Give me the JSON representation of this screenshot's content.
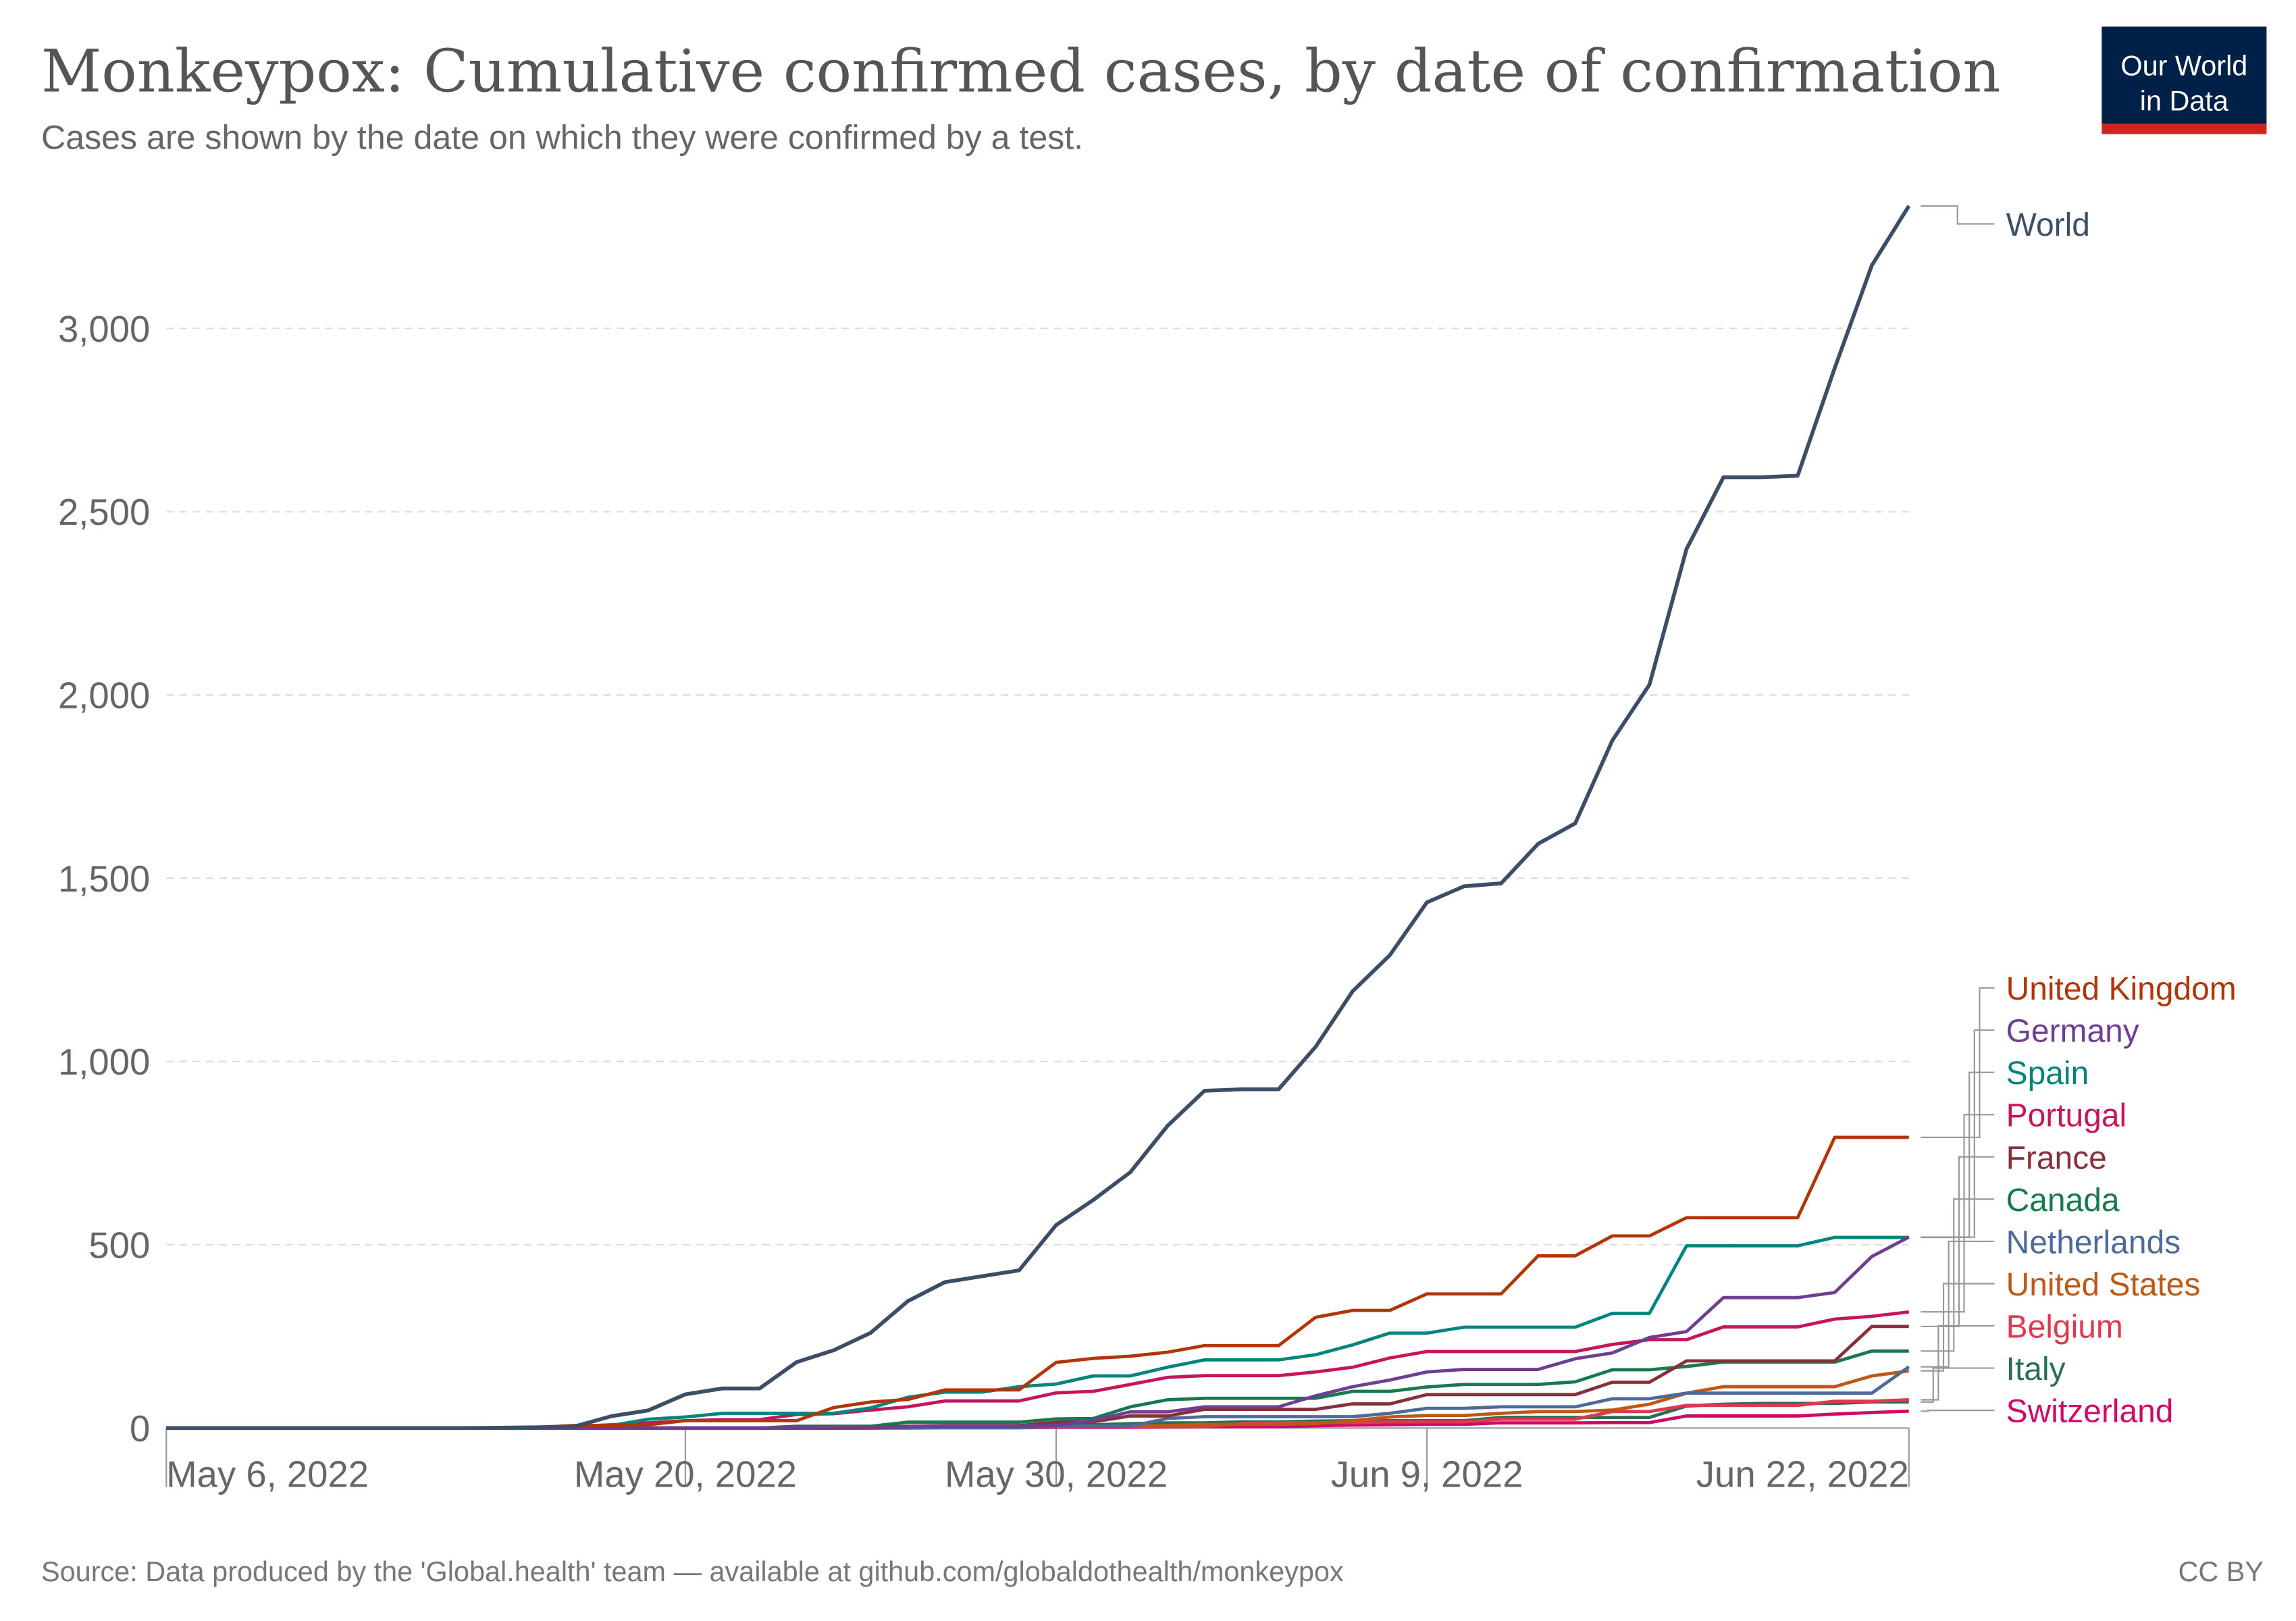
{
  "header": {
    "title": "Monkeypox: Cumulative confirmed cases, by date of confirmation",
    "subtitle": "Cases are shown by the date on which they were confirmed by a test.",
    "logo_line1": "Our World",
    "logo_line2": "in Data"
  },
  "footer": {
    "source": "Source: Data produced by the 'Global.health' team — available at github.com/globaldothealth/monkeypox",
    "license": "CC BY"
  },
  "chart_data": {
    "type": "line",
    "title": "Monkeypox: Cumulative confirmed cases, by date of confirmation",
    "x_start": "May 6, 2022",
    "x_end": "Jun 22, 2022",
    "x_unit": "day",
    "xlim_days": [
      0,
      47
    ],
    "ylim": [
      0,
      3340
    ],
    "grid": true,
    "y_ticks": [
      {
        "value": 0,
        "label": "0"
      },
      {
        "value": 500,
        "label": "500"
      },
      {
        "value": 1000,
        "label": "1,000"
      },
      {
        "value": 1500,
        "label": "1,500"
      },
      {
        "value": 2000,
        "label": "2,000"
      },
      {
        "value": 2500,
        "label": "2,500"
      },
      {
        "value": 3000,
        "label": "3,000"
      }
    ],
    "x_ticks": [
      {
        "day": 0,
        "label": "May 6, 2022"
      },
      {
        "day": 14,
        "label": "May 20, 2022"
      },
      {
        "day": 24,
        "label": "May 30, 2022"
      },
      {
        "day": 34,
        "label": "Jun 9, 2022"
      },
      {
        "day": 47,
        "label": "Jun 22, 2022"
      }
    ],
    "legend_placement": "right",
    "series": [
      {
        "name": "World",
        "color": "#3c4e66",
        "values": [
          0,
          0,
          0,
          0,
          0,
          0,
          0,
          0,
          0,
          1,
          2,
          4,
          32,
          48,
          92,
          108,
          108,
          180,
          212,
          260,
          346,
          398,
          414,
          430,
          554,
          622,
          698,
          824,
          920,
          924,
          924,
          1040,
          1192,
          1290,
          1434,
          1478,
          1486,
          1594,
          1650,
          1876,
          2028,
          2398,
          2594,
          2594,
          2598,
          2892,
          3172,
          3334
        ]
      },
      {
        "name": "United Kingdom",
        "color": "#b13507",
        "values": [
          0,
          0,
          0,
          0,
          0,
          0,
          0,
          0,
          0,
          1,
          2,
          7,
          7,
          9,
          20,
          20,
          20,
          20,
          56,
          71,
          78,
          104,
          104,
          104,
          179,
          190,
          196,
          207,
          225,
          225,
          225,
          302,
          321,
          321,
          366,
          366,
          366,
          470,
          470,
          524,
          524,
          574,
          574,
          574,
          574,
          793,
          793,
          793
        ]
      },
      {
        "name": "Germany",
        "color": "#6d3e91",
        "values": [
          0,
          0,
          0,
          0,
          0,
          0,
          0,
          0,
          0,
          0,
          0,
          0,
          0,
          0,
          0,
          0,
          0,
          1,
          3,
          3,
          5,
          5,
          5,
          5,
          7,
          21,
          44,
          44,
          58,
          58,
          58,
          88,
          113,
          131,
          153,
          160,
          160,
          160,
          189,
          205,
          247,
          263,
          356,
          356,
          356,
          370,
          468,
          521
        ]
      },
      {
        "name": "Spain",
        "color": "#00847e",
        "values": [
          0,
          0,
          0,
          0,
          0,
          0,
          0,
          0,
          0,
          0,
          1,
          7,
          7,
          24,
          30,
          40,
          40,
          40,
          40,
          55,
          84,
          98,
          98,
          113,
          120,
          142,
          142,
          166,
          186,
          186,
          186,
          200,
          227,
          259,
          259,
          275,
          275,
          275,
          275,
          313,
          313,
          497,
          497,
          497,
          497,
          520,
          520,
          520
        ]
      },
      {
        "name": "Portugal",
        "color": "#c5165c",
        "values": [
          0,
          0,
          0,
          0,
          0,
          0,
          0,
          0,
          0,
          0,
          0,
          5,
          9,
          14,
          20,
          23,
          23,
          37,
          39,
          49,
          58,
          74,
          74,
          74,
          96,
          100,
          119,
          138,
          143,
          143,
          143,
          153,
          166,
          191,
          209,
          209,
          209,
          209,
          209,
          228,
          241,
          241,
          276,
          276,
          276,
          297,
          305,
          317
        ]
      },
      {
        "name": "France",
        "color": "#883039",
        "values": [
          0,
          0,
          0,
          0,
          0,
          0,
          0,
          0,
          0,
          0,
          0,
          0,
          0,
          0,
          0,
          0,
          0,
          0,
          0,
          1,
          5,
          7,
          7,
          7,
          16,
          17,
          33,
          33,
          51,
          51,
          51,
          51,
          66,
          66,
          91,
          91,
          91,
          91,
          91,
          125,
          125,
          183,
          183,
          183,
          183,
          183,
          277,
          277
        ]
      },
      {
        "name": "Canada",
        "color": "#18794e",
        "values": [
          0,
          0,
          0,
          0,
          0,
          0,
          0,
          0,
          0,
          0,
          0,
          0,
          0,
          0,
          0,
          0,
          0,
          5,
          5,
          5,
          16,
          16,
          16,
          16,
          25,
          26,
          58,
          77,
          81,
          81,
          81,
          81,
          100,
          100,
          112,
          119,
          119,
          119,
          126,
          159,
          159,
          168,
          180,
          180,
          180,
          180,
          210,
          210
        ]
      },
      {
        "name": "Netherlands",
        "color": "#4c6a9c",
        "values": [
          0,
          0,
          0,
          0,
          0,
          0,
          0,
          0,
          0,
          0,
          0,
          0,
          0,
          0,
          0,
          0,
          0,
          0,
          0,
          1,
          1,
          1,
          1,
          1,
          5,
          5,
          5,
          26,
          31,
          31,
          31,
          31,
          31,
          40,
          54,
          54,
          58,
          58,
          58,
          80,
          80,
          95,
          95,
          95,
          95,
          95,
          95,
          167
        ]
      },
      {
        "name": "United States",
        "color": "#be5915",
        "values": [
          0,
          0,
          0,
          0,
          0,
          0,
          0,
          0,
          0,
          0,
          0,
          0,
          0,
          0,
          0,
          0,
          0,
          0,
          1,
          1,
          1,
          2,
          3,
          3,
          5,
          5,
          5,
          7,
          10,
          10,
          10,
          12,
          20,
          30,
          34,
          34,
          40,
          45,
          45,
          49,
          65,
          95,
          113,
          113,
          113,
          113,
          142,
          156
        ]
      },
      {
        "name": "Belgium",
        "color": "#e0384f",
        "values": [
          0,
          0,
          0,
          0,
          0,
          0,
          0,
          0,
          0,
          0,
          0,
          0,
          0,
          0,
          0,
          0,
          0,
          0,
          0,
          0,
          1,
          3,
          4,
          4,
          4,
          4,
          4,
          4,
          4,
          12,
          15,
          15,
          15,
          17,
          17,
          17,
          24,
          24,
          24,
          45,
          45,
          62,
          62,
          62,
          62,
          73,
          73,
          77
        ]
      },
      {
        "name": "Italy",
        "color": "#286f54",
        "values": [
          0,
          0,
          0,
          0,
          0,
          0,
          0,
          0,
          0,
          0,
          0,
          0,
          0,
          0,
          0,
          0,
          0,
          0,
          0,
          0,
          1,
          3,
          6,
          7,
          9,
          9,
          12,
          14,
          14,
          17,
          17,
          19,
          20,
          20,
          20,
          20,
          29,
          29,
          29,
          29,
          29,
          60,
          65,
          67,
          67,
          67,
          71,
          71
        ]
      },
      {
        "name": "Switzerland",
        "color": "#cf0a66",
        "values": [
          0,
          0,
          0,
          0,
          0,
          0,
          0,
          0,
          0,
          0,
          0,
          0,
          0,
          0,
          0,
          0,
          0,
          0,
          0,
          0,
          0,
          1,
          1,
          1,
          2,
          2,
          2,
          3,
          4,
          4,
          4,
          6,
          8,
          9,
          10,
          10,
          14,
          14,
          14,
          15,
          15,
          33,
          33,
          33,
          33,
          38,
          42,
          46
        ]
      }
    ]
  }
}
